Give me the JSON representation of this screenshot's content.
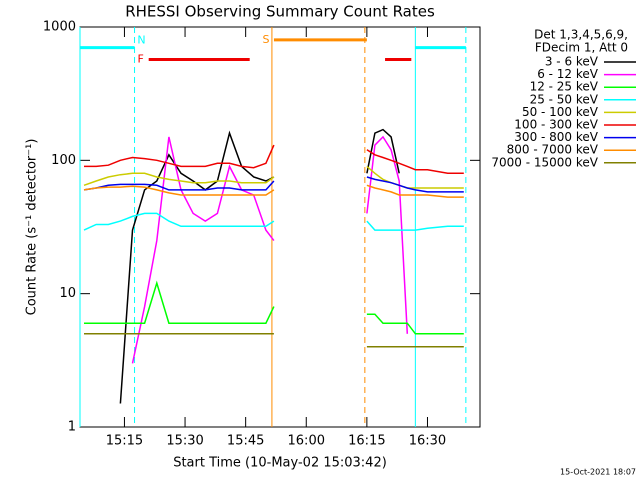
{
  "chart_data": {
    "type": "line",
    "title": "RHESSI Observing Summary Count Rates",
    "x_label": "Start Time (10-May-02 15:03:42)",
    "y_label": "Count Rate (s⁻¹ detector⁻¹)",
    "legend_header": [
      "Det 1,3,4,5,6,9,",
      "FDecim 1, Att 0"
    ],
    "footer": "15-Oct-2021 18:07",
    "log_y": true,
    "xlim": [
      904,
      1003
    ],
    "xticks": [
      {
        "value": 915,
        "label": "15:15"
      },
      {
        "value": 930,
        "label": "15:30"
      },
      {
        "value": 945,
        "label": "15:45"
      },
      {
        "value": 960,
        "label": "16:00"
      },
      {
        "value": 975,
        "label": "16:15"
      },
      {
        "value": 990,
        "label": "16:30"
      }
    ],
    "ylim": [
      1,
      1000
    ],
    "yticks": [
      1,
      10,
      100,
      1000
    ],
    "x": [
      905,
      908,
      911,
      914,
      917,
      920,
      923,
      926,
      929,
      932,
      935,
      938,
      941,
      944,
      947,
      950,
      952,
      960,
      975,
      977,
      979,
      981,
      983,
      985,
      987,
      990,
      995,
      999
    ],
    "series": [
      {
        "name": "3 - 6 keV",
        "color": "#000000",
        "values": [
          null,
          null,
          null,
          1.5,
          30,
          60,
          70,
          110,
          80,
          70,
          60,
          70,
          160,
          90,
          75,
          70,
          75,
          null,
          80,
          160,
          170,
          150,
          80,
          null,
          null,
          null,
          null,
          null
        ]
      },
      {
        "name": "6 - 12 keV",
        "color": "#ff00ff",
        "values": [
          null,
          null,
          null,
          null,
          3,
          8,
          25,
          150,
          60,
          40,
          35,
          40,
          90,
          60,
          55,
          30,
          25,
          null,
          40,
          130,
          150,
          120,
          70,
          5,
          null,
          null,
          null,
          null
        ]
      },
      {
        "name": "12 - 25 keV",
        "color": "#00ff00",
        "values": [
          6,
          6,
          6,
          6,
          6,
          6,
          12,
          6,
          6,
          6,
          6,
          6,
          6,
          6,
          6,
          6,
          8,
          null,
          7,
          7,
          6,
          6,
          6,
          6,
          5,
          5,
          5,
          5
        ]
      },
      {
        "name": "25 - 50 keV",
        "color": "#00ffff",
        "values": [
          30,
          33,
          33,
          35,
          38,
          40,
          40,
          35,
          32,
          32,
          32,
          32,
          32,
          32,
          32,
          32,
          35,
          null,
          35,
          30,
          30,
          30,
          30,
          30,
          30,
          31,
          32,
          32
        ]
      },
      {
        "name": "50 - 100 keV",
        "color": "#cccc00",
        "values": [
          65,
          70,
          75,
          78,
          80,
          80,
          75,
          72,
          70,
          68,
          68,
          70,
          70,
          68,
          68,
          68,
          75,
          null,
          90,
          80,
          72,
          68,
          65,
          62,
          62,
          62,
          62,
          62
        ]
      },
      {
        "name": "100 - 300 keV",
        "color": "#ee0000",
        "values": [
          90,
          90,
          92,
          100,
          105,
          103,
          100,
          95,
          90,
          90,
          90,
          95,
          95,
          90,
          88,
          95,
          130,
          null,
          120,
          110,
          105,
          100,
          95,
          90,
          85,
          85,
          80,
          80
        ]
      },
      {
        "name": "300 - 800 keV",
        "color": "#0000ee",
        "values": [
          60,
          62,
          65,
          66,
          66,
          66,
          65,
          60,
          60,
          60,
          60,
          62,
          62,
          60,
          60,
          60,
          70,
          null,
          75,
          72,
          70,
          68,
          65,
          62,
          60,
          58,
          58,
          58
        ]
      },
      {
        "name": "800 - 7000 keV",
        "color": "#ff8c00",
        "values": [
          60,
          62,
          63,
          63,
          64,
          63,
          60,
          57,
          55,
          55,
          55,
          55,
          55,
          55,
          55,
          55,
          60,
          null,
          65,
          62,
          60,
          58,
          55,
          55,
          55,
          55,
          53,
          53
        ]
      },
      {
        "name": "7000 - 15000 keV",
        "color": "#808000",
        "values": [
          5,
          5,
          5,
          5,
          5,
          5,
          5,
          5,
          5,
          5,
          5,
          5,
          5,
          5,
          5,
          5,
          5,
          null,
          4,
          4,
          4,
          4,
          4,
          4,
          4,
          4,
          4,
          4
        ]
      }
    ],
    "flags": [
      {
        "label": "N",
        "color": "#00ffff",
        "start": 904,
        "end": 917.5,
        "level": 700
      },
      {
        "label": "F",
        "color": "#ee0000",
        "start": 921,
        "end": 946,
        "level": 570
      },
      {
        "label": "S",
        "color": "#ff8c00",
        "start": 952,
        "end": 975,
        "level": 800
      },
      {
        "color": "#ee0000",
        "start": 979.5,
        "end": 986,
        "level": 570
      },
      {
        "color": "#00ffff",
        "start": 987,
        "end": 999.5,
        "level": 700
      }
    ],
    "vlines": [
      {
        "x": 904,
        "color": "#00ffff",
        "dashed": false
      },
      {
        "x": 917.5,
        "color": "#00ffff",
        "dashed": true
      },
      {
        "x": 951.5,
        "color": "#ff8c00",
        "dashed": false
      },
      {
        "x": 974.5,
        "color": "#ff8c00",
        "dashed": true
      },
      {
        "x": 987,
        "color": "#00ffff",
        "dashed": false
      },
      {
        "x": 999.5,
        "color": "#00ffff",
        "dashed": true
      }
    ]
  }
}
